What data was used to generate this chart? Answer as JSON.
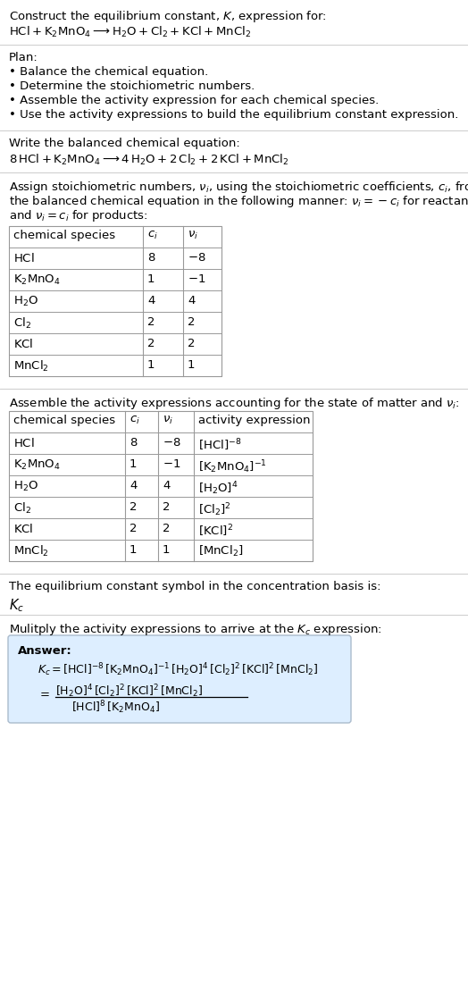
{
  "bg_color": "#ffffff",
  "text_color": "#000000",
  "title_line1": "Construct the equilibrium constant, $K$, expression for:",
  "title_line2": "$\\mathrm{HCl + K_2MnO_4 \\longrightarrow H_2O + Cl_2 + KCl + MnCl_2}$",
  "plan_header": "Plan:",
  "plan_bullets": [
    "• Balance the chemical equation.",
    "• Determine the stoichiometric numbers.",
    "• Assemble the activity expression for each chemical species.",
    "• Use the activity expressions to build the equilibrium constant expression."
  ],
  "balanced_header": "Write the balanced chemical equation:",
  "balanced_eq": "$\\mathrm{8\\,HCl + K_2MnO_4 \\longrightarrow 4\\,H_2O + 2\\,Cl_2 + 2\\,KCl + MnCl_2}$",
  "stoich_intro_lines": [
    "Assign stoichiometric numbers, $\\nu_i$, using the stoichiometric coefficients, $c_i$, from",
    "the balanced chemical equation in the following manner: $\\nu_i = -c_i$ for reactants",
    "and $\\nu_i = c_i$ for products:"
  ],
  "table1_headers": [
    "chemical species",
    "$c_i$",
    "$\\nu_i$"
  ],
  "table1_rows": [
    [
      "$\\mathrm{HCl}$",
      "8",
      "$-8$"
    ],
    [
      "$\\mathrm{K_2MnO_4}$",
      "1",
      "$-1$"
    ],
    [
      "$\\mathrm{H_2O}$",
      "4",
      "4"
    ],
    [
      "$\\mathrm{Cl_2}$",
      "2",
      "2"
    ],
    [
      "$\\mathrm{KCl}$",
      "2",
      "2"
    ],
    [
      "$\\mathrm{MnCl_2}$",
      "1",
      "1"
    ]
  ],
  "activity_intro": "Assemble the activity expressions accounting for the state of matter and $\\nu_i$:",
  "table2_headers": [
    "chemical species",
    "$c_i$",
    "$\\nu_i$",
    "activity expression"
  ],
  "table2_rows": [
    [
      "$\\mathrm{HCl}$",
      "8",
      "$-8$",
      "$[\\mathrm{HCl}]^{-8}$"
    ],
    [
      "$\\mathrm{K_2MnO_4}$",
      "1",
      "$-1$",
      "$[\\mathrm{K_2MnO_4}]^{-1}$"
    ],
    [
      "$\\mathrm{H_2O}$",
      "4",
      "4",
      "$[\\mathrm{H_2O}]^{4}$"
    ],
    [
      "$\\mathrm{Cl_2}$",
      "2",
      "2",
      "$[\\mathrm{Cl_2}]^{2}$"
    ],
    [
      "$\\mathrm{KCl}$",
      "2",
      "2",
      "$[\\mathrm{KCl}]^{2}$"
    ],
    [
      "$\\mathrm{MnCl_2}$",
      "1",
      "1",
      "$[\\mathrm{MnCl_2}]$"
    ]
  ],
  "kc_intro": "The equilibrium constant symbol in the concentration basis is:",
  "kc_symbol": "$K_c$",
  "multiply_intro": "Mulitply the activity expressions to arrive at the $K_c$ expression:",
  "answer_label": "Answer:",
  "answer_line1": "$K_c = [\\mathrm{HCl}]^{-8}\\,[\\mathrm{K_2MnO_4}]^{-1}\\,[\\mathrm{H_2O}]^{4}\\,[\\mathrm{Cl_2}]^{2}\\,[\\mathrm{KCl}]^{2}\\,[\\mathrm{MnCl_2}]$",
  "answer_eq_sign": "$=$",
  "answer_num": "$[\\mathrm{H_2O}]^{4}\\,[\\mathrm{Cl_2}]^{2}\\,[\\mathrm{KCl}]^{2}\\,[\\mathrm{MnCl_2}]$",
  "answer_den": "$[\\mathrm{HCl}]^{8}\\,[\\mathrm{K_2MnO_4}]$",
  "answer_box_color": "#ddeeff",
  "answer_box_border": "#aabbcc",
  "table_border_color": "#999999",
  "divider_color": "#cccccc",
  "font_size": 9.5,
  "font_size_table": 9.5
}
